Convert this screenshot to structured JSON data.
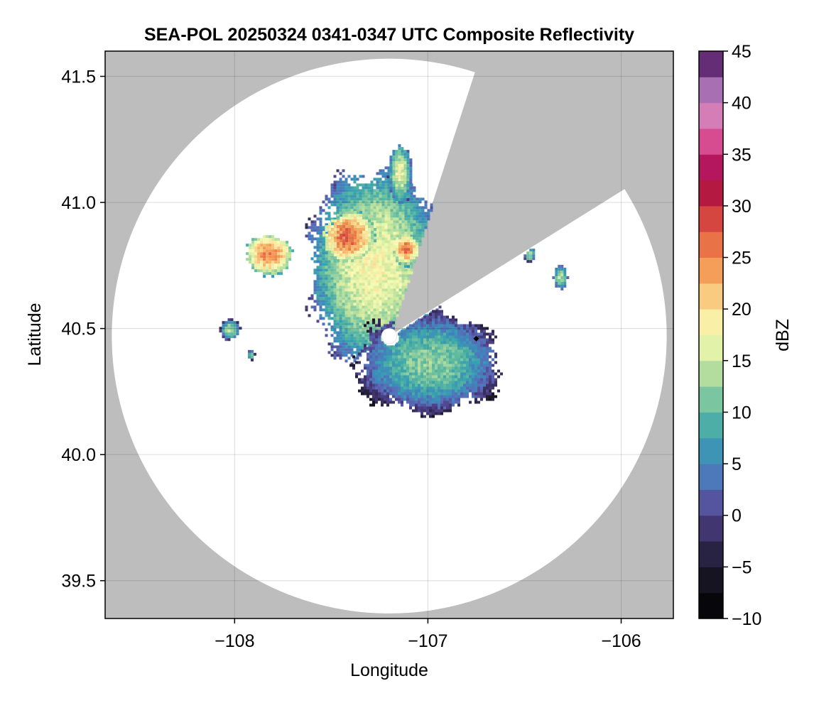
{
  "chart_data": {
    "type": "heatmap",
    "title": "SEA-POL 20250324 0341-0347 UTC Composite Reflectivity",
    "xlabel": "Longitude",
    "ylabel": "Latitude",
    "xlim": [
      -108.67,
      -105.73
    ],
    "ylim": [
      39.35,
      41.6
    ],
    "x_ticks": [
      -108,
      -107,
      -106
    ],
    "x_tick_labels": [
      "−108",
      "−107",
      "−106"
    ],
    "y_ticks": [
      39.5,
      40.0,
      40.5,
      41.0,
      41.5
    ],
    "y_tick_labels": [
      "39.5",
      "40.0",
      "40.5",
      "41.0",
      "41.5"
    ],
    "grid": true,
    "background_color": "#bdbdbd",
    "radar": {
      "center_lon": -107.2,
      "center_lat": 40.47,
      "range_lat_deg": 1.1,
      "blind_radius_lat_deg": 0.03,
      "blocked_sector_from_north_deg": [
        18,
        58
      ],
      "marker": {
        "lon": -106.75,
        "lat": 40.46,
        "color": "#000000"
      }
    },
    "colorbar": {
      "label": "dBZ",
      "min": -10,
      "max": 45,
      "step": 2.5,
      "ticks": [
        -10,
        -5,
        0,
        5,
        10,
        15,
        20,
        25,
        30,
        35,
        40,
        45
      ],
      "tick_labels": [
        "−10",
        "−5",
        "0",
        "5",
        "10",
        "15",
        "20",
        "25",
        "30",
        "35",
        "40",
        "45"
      ],
      "colormap_stops": [
        {
          "v": -10,
          "c": "#000000"
        },
        {
          "v": -5,
          "c": "#1d1a2c"
        },
        {
          "v": 0,
          "c": "#4e3f86"
        },
        {
          "v": 2.5,
          "c": "#5b6ab8"
        },
        {
          "v": 5,
          "c": "#3f86bc"
        },
        {
          "v": 7.5,
          "c": "#3aa2ae"
        },
        {
          "v": 10,
          "c": "#5fba9f"
        },
        {
          "v": 12.5,
          "c": "#96d1a0"
        },
        {
          "v": 15,
          "c": "#cde89c"
        },
        {
          "v": 17.5,
          "c": "#f6fbb3"
        },
        {
          "v": 20,
          "c": "#fbe39b"
        },
        {
          "v": 22.5,
          "c": "#f7b267"
        },
        {
          "v": 25,
          "c": "#f08a4b"
        },
        {
          "v": 27.5,
          "c": "#e15b43"
        },
        {
          "v": 30,
          "c": "#c8313f"
        },
        {
          "v": 32.5,
          "c": "#9e0142"
        },
        {
          "v": 35,
          "c": "#c92d79"
        },
        {
          "v": 37.5,
          "c": "#e56aa6"
        },
        {
          "v": 40,
          "c": "#c48fc7"
        },
        {
          "v": 42.5,
          "c": "#8c4f9c"
        },
        {
          "v": 45,
          "c": "#3d0a4e"
        }
      ]
    },
    "echoes": [
      {
        "name": "main-storm",
        "lon": -107.28,
        "lat": 40.75,
        "r_lon": 0.33,
        "r_lat": 0.38,
        "peak_dbz": 18
      },
      {
        "name": "core-central",
        "lon": -107.42,
        "lat": 40.87,
        "r_lon": 0.13,
        "r_lat": 0.1,
        "peak_dbz": 27
      },
      {
        "name": "core-east",
        "lon": -107.12,
        "lat": 40.82,
        "r_lon": 0.07,
        "r_lat": 0.06,
        "peak_dbz": 26
      },
      {
        "name": "core-west",
        "lon": -107.83,
        "lat": 40.8,
        "r_lon": 0.12,
        "r_lat": 0.08,
        "peak_dbz": 25
      },
      {
        "name": "south-band",
        "lon": -107.0,
        "lat": 40.37,
        "r_lon": 0.38,
        "r_lat": 0.2,
        "peak_dbz": 12
      },
      {
        "name": "north-tail",
        "lon": -107.15,
        "lat": 41.12,
        "r_lon": 0.06,
        "r_lat": 0.12,
        "peak_dbz": 17
      },
      {
        "name": "cell-west-1",
        "lon": -108.03,
        "lat": 40.5,
        "r_lon": 0.05,
        "r_lat": 0.04,
        "peak_dbz": 14
      },
      {
        "name": "cell-west-2",
        "lon": -107.92,
        "lat": 40.4,
        "r_lon": 0.02,
        "r_lat": 0.02,
        "peak_dbz": 13
      },
      {
        "name": "cell-east-1",
        "lon": -106.32,
        "lat": 40.71,
        "r_lon": 0.04,
        "r_lat": 0.05,
        "peak_dbz": 14
      },
      {
        "name": "cell-east-2",
        "lon": -106.48,
        "lat": 40.8,
        "r_lon": 0.03,
        "r_lat": 0.03,
        "peak_dbz": 14
      }
    ]
  }
}
